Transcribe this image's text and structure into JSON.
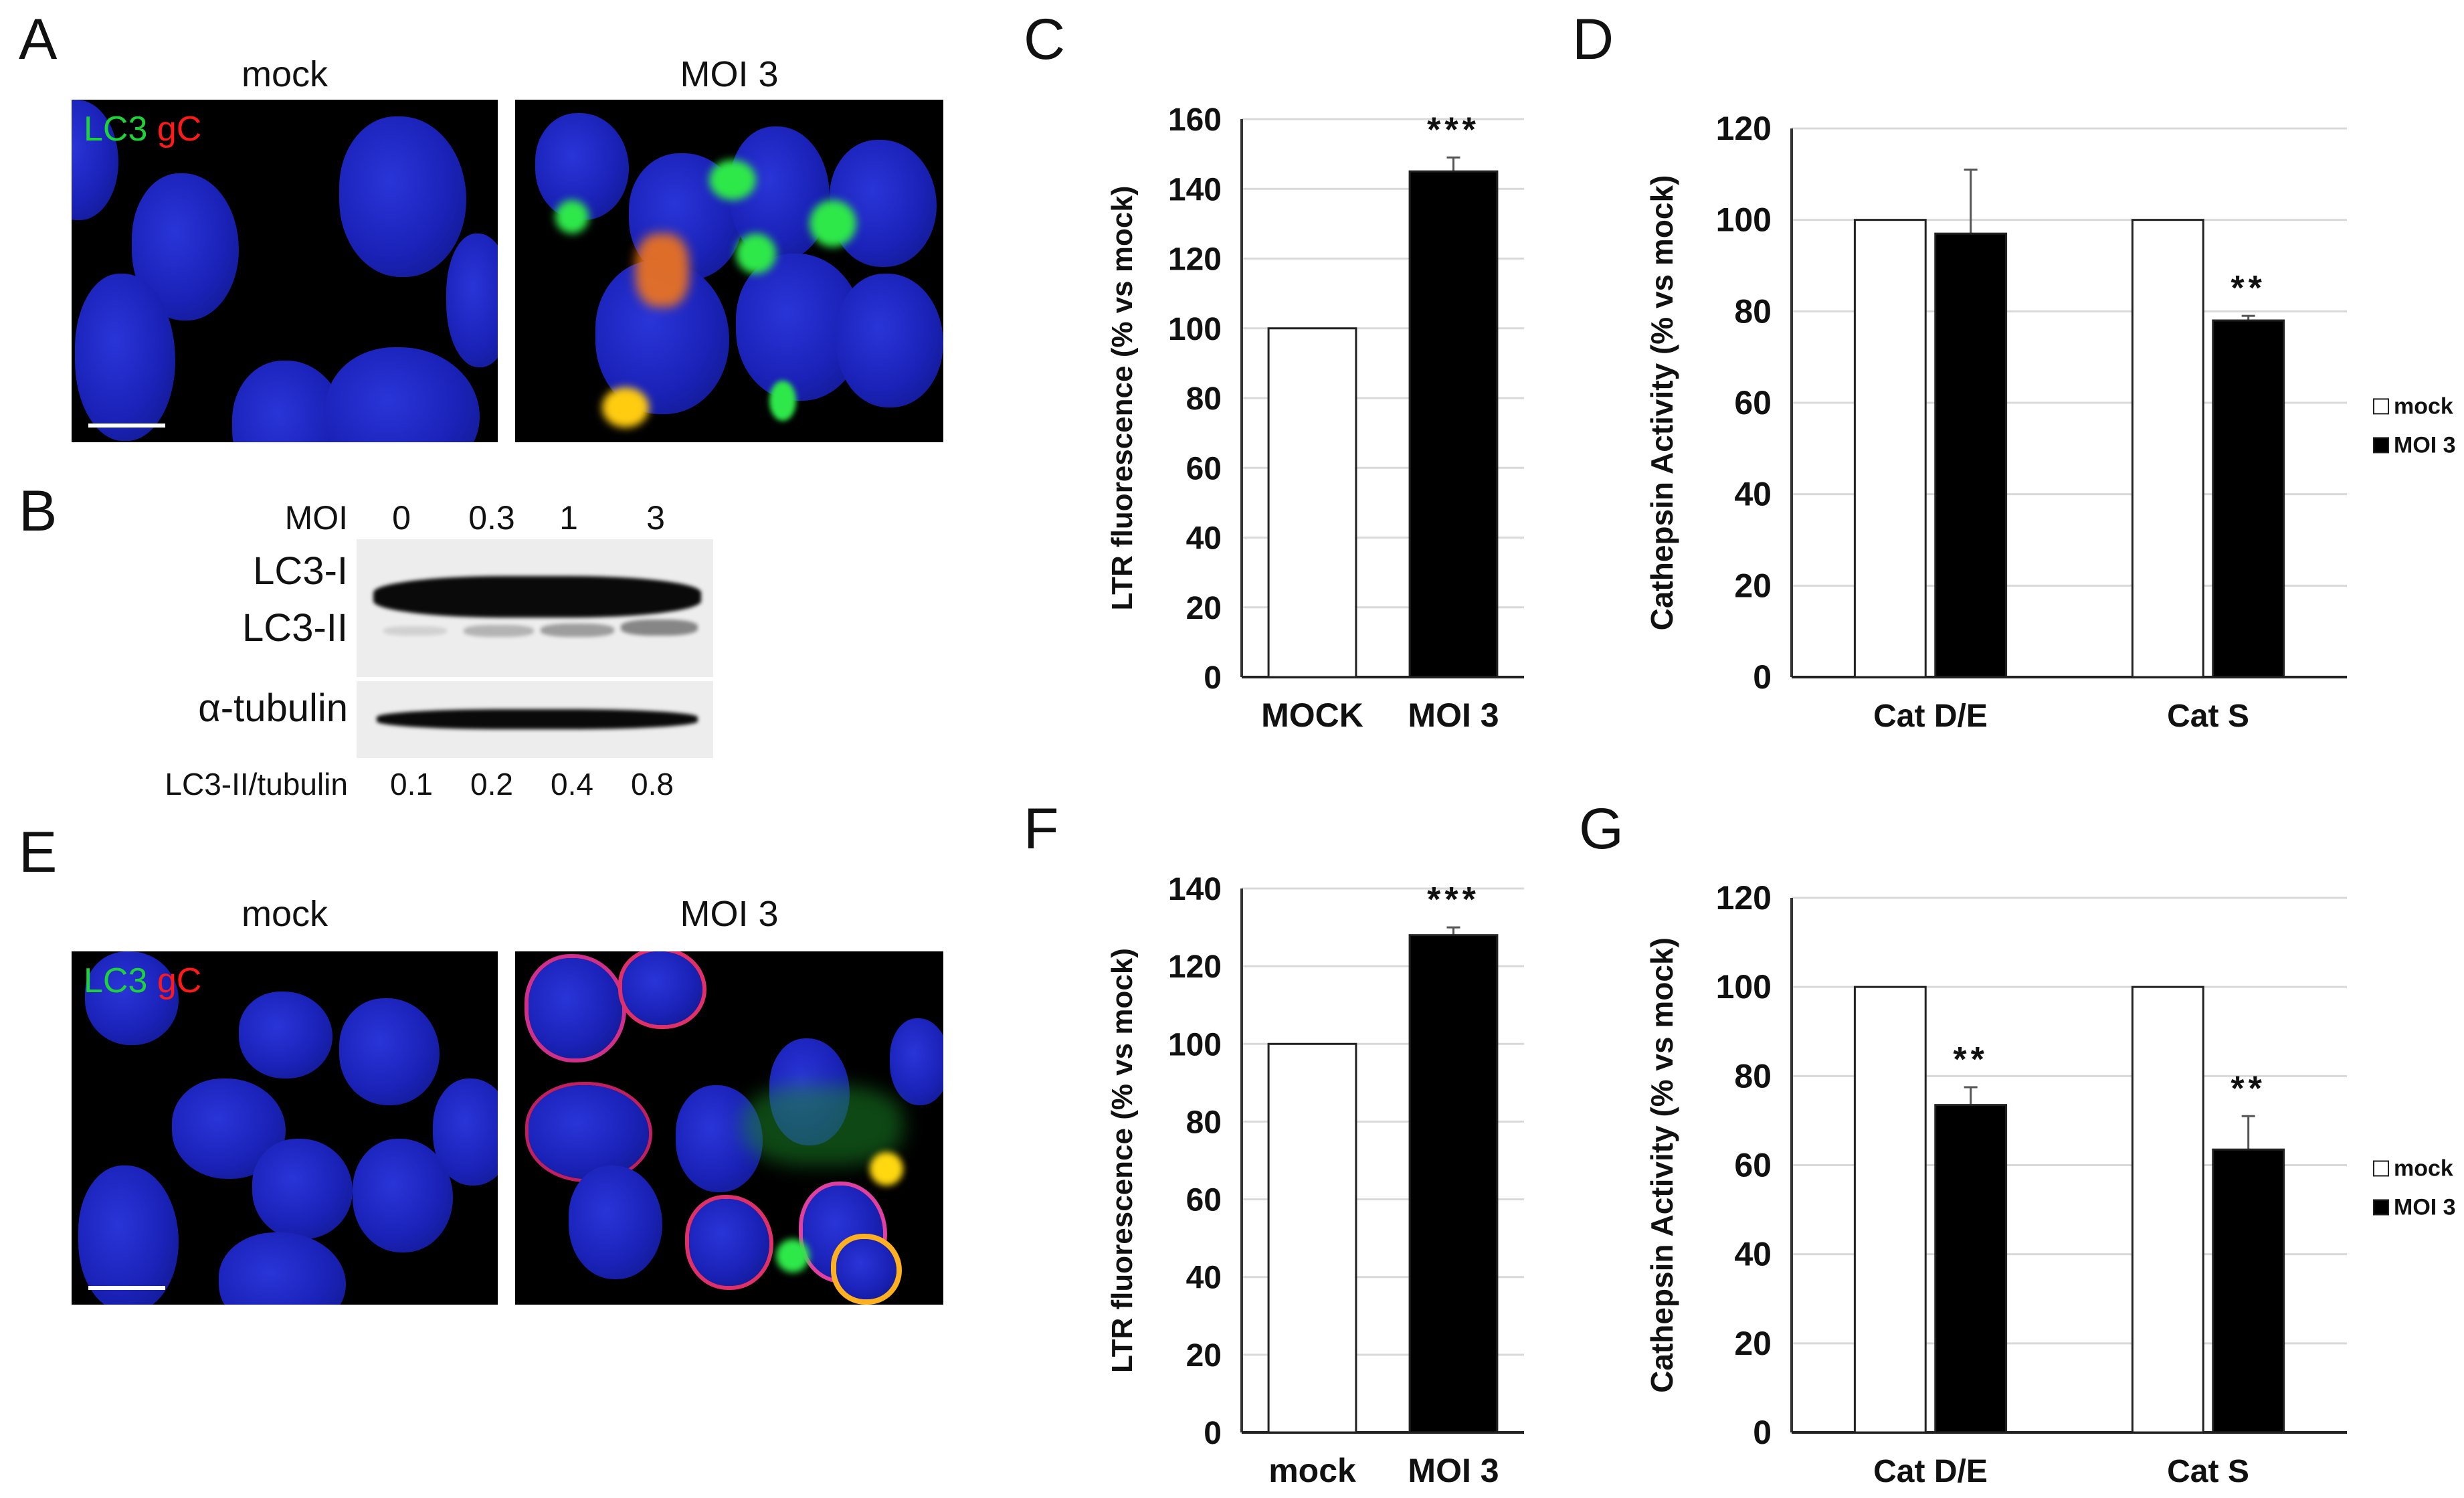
{
  "panels": {
    "A": {
      "letter": "A",
      "mock_title": "mock",
      "moi_title": "MOI 3",
      "stain_green": "LC3",
      "stain_red": "gC"
    },
    "B": {
      "letter": "B",
      "moi_label": "MOI",
      "lanes": [
        "0",
        "0.3",
        "1",
        "3"
      ],
      "band_labels": {
        "lc3_i": "LC3-I",
        "lc3_ii": "LC3-II",
        "tubulin": "α-tubulin"
      },
      "ratio_label": "LC3-II/tubulin",
      "ratios": [
        "0.1",
        "0.2",
        "0.4",
        "0.8"
      ]
    },
    "C": {
      "letter": "C"
    },
    "D": {
      "letter": "D"
    },
    "E": {
      "letter": "E",
      "mock_title": "mock",
      "moi_title": "MOI 3",
      "stain_green": "LC3",
      "stain_red": "gC"
    },
    "F": {
      "letter": "F"
    },
    "G": {
      "letter": "G"
    }
  },
  "colors": {
    "green_stain": "#1ed33a",
    "red_stain": "#ff1a1a",
    "nuclei_blue": "#1a22b8",
    "bar_mock": "#ffffff",
    "bar_moi": "#000000",
    "gridline": "#d9d9d9"
  },
  "chart_data": [
    {
      "id": "C",
      "type": "bar",
      "title": "",
      "xlabel": "",
      "ylabel": "LTR fluorescence (% vs mock)",
      "categories": [
        "MOCK",
        "MOI 3"
      ],
      "values": [
        100,
        145
      ],
      "error_upper": [
        null,
        149
      ],
      "bar_colors": [
        "#ffffff",
        "#000000"
      ],
      "annotations": [
        {
          "category": "MOI 3",
          "text": "***"
        }
      ],
      "ylim": [
        0,
        160
      ],
      "yticks": [
        0,
        20,
        40,
        60,
        80,
        100,
        120,
        140,
        160
      ],
      "grid": true,
      "legend": null
    },
    {
      "id": "D",
      "type": "bar",
      "title": "",
      "xlabel": "",
      "ylabel": "Cathepsin Activity (% vs mock)",
      "categories": [
        "Cat D/E",
        "Cat S"
      ],
      "series": [
        {
          "name": "mock",
          "values": [
            100,
            100
          ],
          "error_upper": [
            null,
            null
          ],
          "color": "#ffffff"
        },
        {
          "name": "MOI 3",
          "values": [
            97,
            78
          ],
          "error_upper": [
            111,
            79
          ],
          "color": "#000000"
        }
      ],
      "annotations": [
        {
          "category": "Cat S",
          "series": "MOI 3",
          "text": "**"
        }
      ],
      "ylim": [
        0,
        120
      ],
      "yticks": [
        0,
        20,
        40,
        60,
        80,
        100,
        120
      ],
      "grid": true,
      "legend": {
        "position": "right",
        "entries": [
          "mock",
          "MOI 3"
        ]
      }
    },
    {
      "id": "F",
      "type": "bar",
      "title": "",
      "xlabel": "",
      "ylabel": "LTR fluorescence (% vs mock)",
      "categories": [
        "mock",
        "MOI 3"
      ],
      "values": [
        100,
        128
      ],
      "error_upper": [
        null,
        130
      ],
      "bar_colors": [
        "#ffffff",
        "#000000"
      ],
      "annotations": [
        {
          "category": "MOI 3",
          "text": "***"
        }
      ],
      "ylim": [
        0,
        140
      ],
      "yticks": [
        0,
        20,
        40,
        60,
        80,
        100,
        120,
        140
      ],
      "grid": true,
      "legend": null
    },
    {
      "id": "G",
      "type": "bar",
      "title": "",
      "xlabel": "",
      "ylabel": "Cathepsin Activity (% vs mock)",
      "categories": [
        "Cat D/E",
        "Cat S"
      ],
      "series": [
        {
          "name": "mock",
          "values": [
            100,
            100
          ],
          "error_upper": [
            null,
            null
          ],
          "color": "#ffffff"
        },
        {
          "name": "MOI 3",
          "values": [
            73.5,
            63.5
          ],
          "error_upper": [
            77.5,
            71
          ],
          "color": "#000000"
        }
      ],
      "annotations": [
        {
          "category": "Cat D/E",
          "series": "MOI 3",
          "text": "**"
        },
        {
          "category": "Cat S",
          "series": "MOI 3",
          "text": "**"
        }
      ],
      "ylim": [
        0,
        120
      ],
      "yticks": [
        0,
        20,
        40,
        60,
        80,
        100,
        120
      ],
      "grid": true,
      "legend": {
        "position": "right",
        "entries": [
          "mock",
          "MOI 3"
        ]
      }
    }
  ]
}
